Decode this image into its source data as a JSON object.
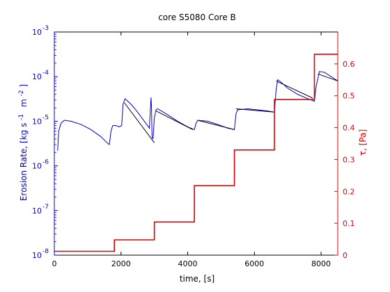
{
  "chart_data": {
    "type": "line",
    "title": "core S5080 Core B",
    "xlabel": "time, [s]",
    "xlim": [
      0,
      8500
    ],
    "x_ticks": [
      0,
      2000,
      4000,
      6000,
      8000
    ],
    "x_tick_labels": [
      "0",
      "2000",
      "4000",
      "6000",
      "8000"
    ],
    "left_axis": {
      "label": "Erosion Rate, [kg  s",
      "label_exp1": "-1",
      "label_mid": "m",
      "label_exp2": "-2",
      "label_end": "]",
      "scale": "log",
      "ylim": [
        1e-08,
        0.001
      ],
      "ticks": [
        {
          "value": 1e-08,
          "base": "10",
          "exp": "-8"
        },
        {
          "value": 1e-07,
          "base": "10",
          "exp": "-7"
        },
        {
          "value": 1e-06,
          "base": "10",
          "exp": "-6"
        },
        {
          "value": 1e-05,
          "base": "10",
          "exp": "-5"
        },
        {
          "value": 0.0001,
          "base": "10",
          "exp": "-4"
        },
        {
          "value": 0.001,
          "base": "10",
          "exp": "-3"
        }
      ],
      "color": "#0000cc"
    },
    "right_axis": {
      "label": "τ, [Pa]",
      "scale": "linear",
      "ylim": [
        0,
        0.7
      ],
      "ticks": [
        0,
        0.1,
        0.2,
        0.3,
        0.4,
        0.5,
        0.6
      ],
      "tick_labels": [
        "0",
        "0.1",
        "0.2",
        "0.3",
        "0.4",
        "0.5",
        "0.6"
      ],
      "color": "#dd0000"
    },
    "series": [
      {
        "axis": "left",
        "color": "#0000cc",
        "points": [
          [
            100,
            2.2e-06
          ],
          [
            130,
            6e-06
          ],
          [
            200,
            9e-06
          ],
          [
            300,
            1.05e-05
          ],
          [
            500,
            1e-05
          ],
          [
            800,
            8.5e-06
          ],
          [
            1100,
            6.5e-06
          ],
          [
            1400,
            4.5e-06
          ],
          [
            1600,
            3.2e-06
          ],
          [
            1650,
            3e-06
          ],
          [
            1700,
            6e-06
          ],
          [
            1750,
            8e-06
          ],
          [
            1850,
            8e-06
          ],
          [
            1950,
            7.5e-06
          ],
          [
            2020,
            8e-06
          ],
          [
            2060,
            2.4e-05
          ],
          [
            2120,
            3.2e-05
          ],
          [
            2300,
            2.4e-05
          ],
          [
            2500,
            1.6e-05
          ],
          [
            2700,
            1e-05
          ],
          [
            2850,
            7e-06
          ],
          [
            2900,
            3.4e-05
          ],
          [
            2915,
            2e-05
          ],
          [
            2930,
            4.5e-06
          ],
          [
            2960,
            4e-06
          ],
          [
            3000,
            1.2e-05
          ],
          [
            3050,
            1.8e-05
          ],
          [
            3100,
            1.9e-05
          ],
          [
            3400,
            1.4e-05
          ],
          [
            3700,
            1e-05
          ],
          [
            4000,
            7.5e-06
          ],
          [
            4200,
            6.5e-06
          ],
          [
            4250,
            9e-06
          ],
          [
            4300,
            1.05e-05
          ],
          [
            4600,
            1e-05
          ],
          [
            4900,
            8.5e-06
          ],
          [
            5200,
            7e-06
          ],
          [
            5400,
            6.5e-06
          ],
          [
            5450,
            1.5e-05
          ],
          [
            5500,
            1.8e-05
          ],
          [
            5800,
            1.9e-05
          ],
          [
            6100,
            1.8e-05
          ],
          [
            6400,
            1.7e-05
          ],
          [
            6600,
            1.6e-05
          ],
          [
            6650,
            5e-05
          ],
          [
            6700,
            8.5e-05
          ],
          [
            6800,
            7.5e-05
          ],
          [
            7000,
            5.5e-05
          ],
          [
            7300,
            4e-05
          ],
          [
            7600,
            3.2e-05
          ],
          [
            7800,
            2.8e-05
          ],
          [
            7850,
            6e-05
          ],
          [
            7950,
            0.00013
          ],
          [
            8100,
            0.000125
          ],
          [
            8300,
            0.0001
          ],
          [
            8500,
            8e-05
          ]
        ]
      },
      {
        "axis": "left",
        "color": "#000000",
        "points": [
          [
            2100,
            2.6e-05
          ],
          [
            3000,
            3.3e-06
          ]
        ],
        "segments": [
          [
            [
              2100,
              2.6e-05
            ],
            [
              3000,
              3.3e-06
            ]
          ],
          [
            [
              3050,
              1.7e-05
            ],
            [
              4150,
              6.5e-06
            ]
          ],
          [
            [
              4300,
              1.05e-05
            ],
            [
              5400,
              6.5e-06
            ]
          ],
          [
            [
              5450,
              1.9e-05
            ],
            [
              6600,
              1.6e-05
            ]
          ],
          [
            [
              6650,
              8e-05
            ],
            [
              7750,
              3.3e-05
            ]
          ],
          [
            [
              7900,
              0.000115
            ],
            [
              8500,
              8e-05
            ]
          ]
        ]
      },
      {
        "axis": "right",
        "color": "#dd0000",
        "points": [
          [
            0,
            0.012
          ],
          [
            1800,
            0.012
          ],
          [
            1800,
            0.048
          ],
          [
            3000,
            0.048
          ],
          [
            3000,
            0.104
          ],
          [
            4200,
            0.104
          ],
          [
            4200,
            0.218
          ],
          [
            5400,
            0.218
          ],
          [
            5400,
            0.33
          ],
          [
            6600,
            0.33
          ],
          [
            6600,
            0.488
          ],
          [
            7800,
            0.488
          ],
          [
            7800,
            0.63
          ],
          [
            8500,
            0.63
          ]
        ]
      }
    ]
  }
}
